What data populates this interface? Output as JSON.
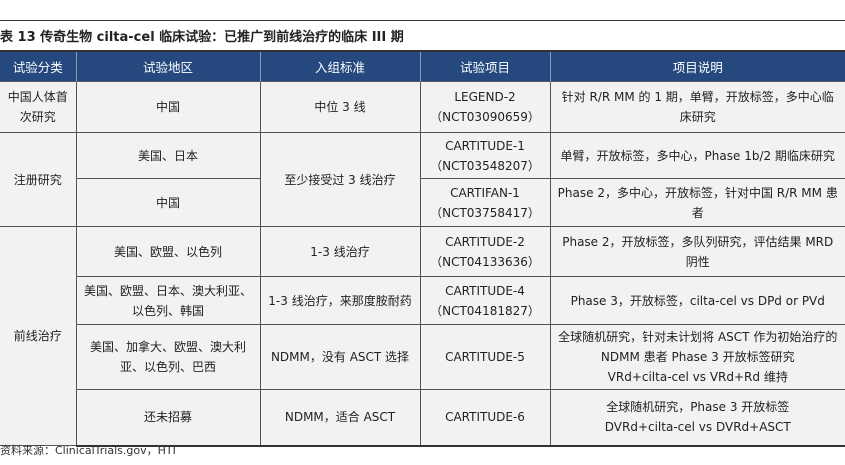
{
  "title": "表 13 传奇生物 cilta-cel 临床试验：已推广到前线治疗的临床 III 期",
  "headers": [
    "试验分类",
    "试验地区",
    "入组标准",
    "试验项目",
    "项目说明"
  ],
  "rows": [
    {
      "category": "中国人体首次研究",
      "region": "中国",
      "criteria": "中位 3 线",
      "trial": "LEGEND-2",
      "trial_id": "（NCT03090659）",
      "desc": "针对 R/R MM 的 1 期，单臂，开放标签，多中心临床研究"
    },
    {
      "category": "注册研究",
      "region": "美国、日本",
      "criteria": "至少接受过 3 线治疗",
      "trial": "CARTITUDE-1",
      "trial_id": "（NCT03548207）",
      "desc": "单臂，开放标签，多中心，Phase 1b/2 期临床研究"
    },
    {
      "region": "中国",
      "trial": "CARTIFAN-1",
      "trial_id": "（NCT03758417）",
      "desc": "Phase 2，多中心，开放标签，针对中国 R/R MM 患者"
    },
    {
      "category": "前线治疗",
      "region": "美国、欧盟、以色列",
      "criteria": "1-3 线治疗",
      "trial": "CARTITUDE-2",
      "trial_id": "（NCT04133636）",
      "desc": "Phase 2，开放标签，多队列研究，评估结果 MRD 阴性"
    },
    {
      "region": "美国、欧盟、日本、澳大利亚、以色列、韩国",
      "criteria": "1-3 线治疗，来那度胺耐药",
      "trial": "CARTITUDE-4",
      "trial_id": "（NCT04181827）",
      "desc": "Phase 3，开放标签，cilta-cel vs DPd or PVd"
    },
    {
      "region": "美国、加拿大、欧盟、澳大利亚、以色列、巴西",
      "criteria": "NDMM，没有 ASCT 选择",
      "trial": "CARTITUDE-5",
      "desc": "全球随机研究，针对未计划将 ASCT 作为初始治疗的 NDMM 患者 Phase 3 开放标签研究",
      "desc2": "VRd+cilta-cel vs VRd+Rd 维持"
    },
    {
      "region": "还未招募",
      "criteria": "NDMM，适合 ASCT",
      "trial": "CARTITUDE-6",
      "desc": "全球随机研究，Phase 3 开放标签",
      "desc2": "DVRd+cilta-cel vs DVRd+ASCT"
    }
  ],
  "source": "资料来源：ClinicalTrials.gov，HTI",
  "colors": {
    "header_bg": "#25497e",
    "cell_bg": "#f2f2f2"
  }
}
